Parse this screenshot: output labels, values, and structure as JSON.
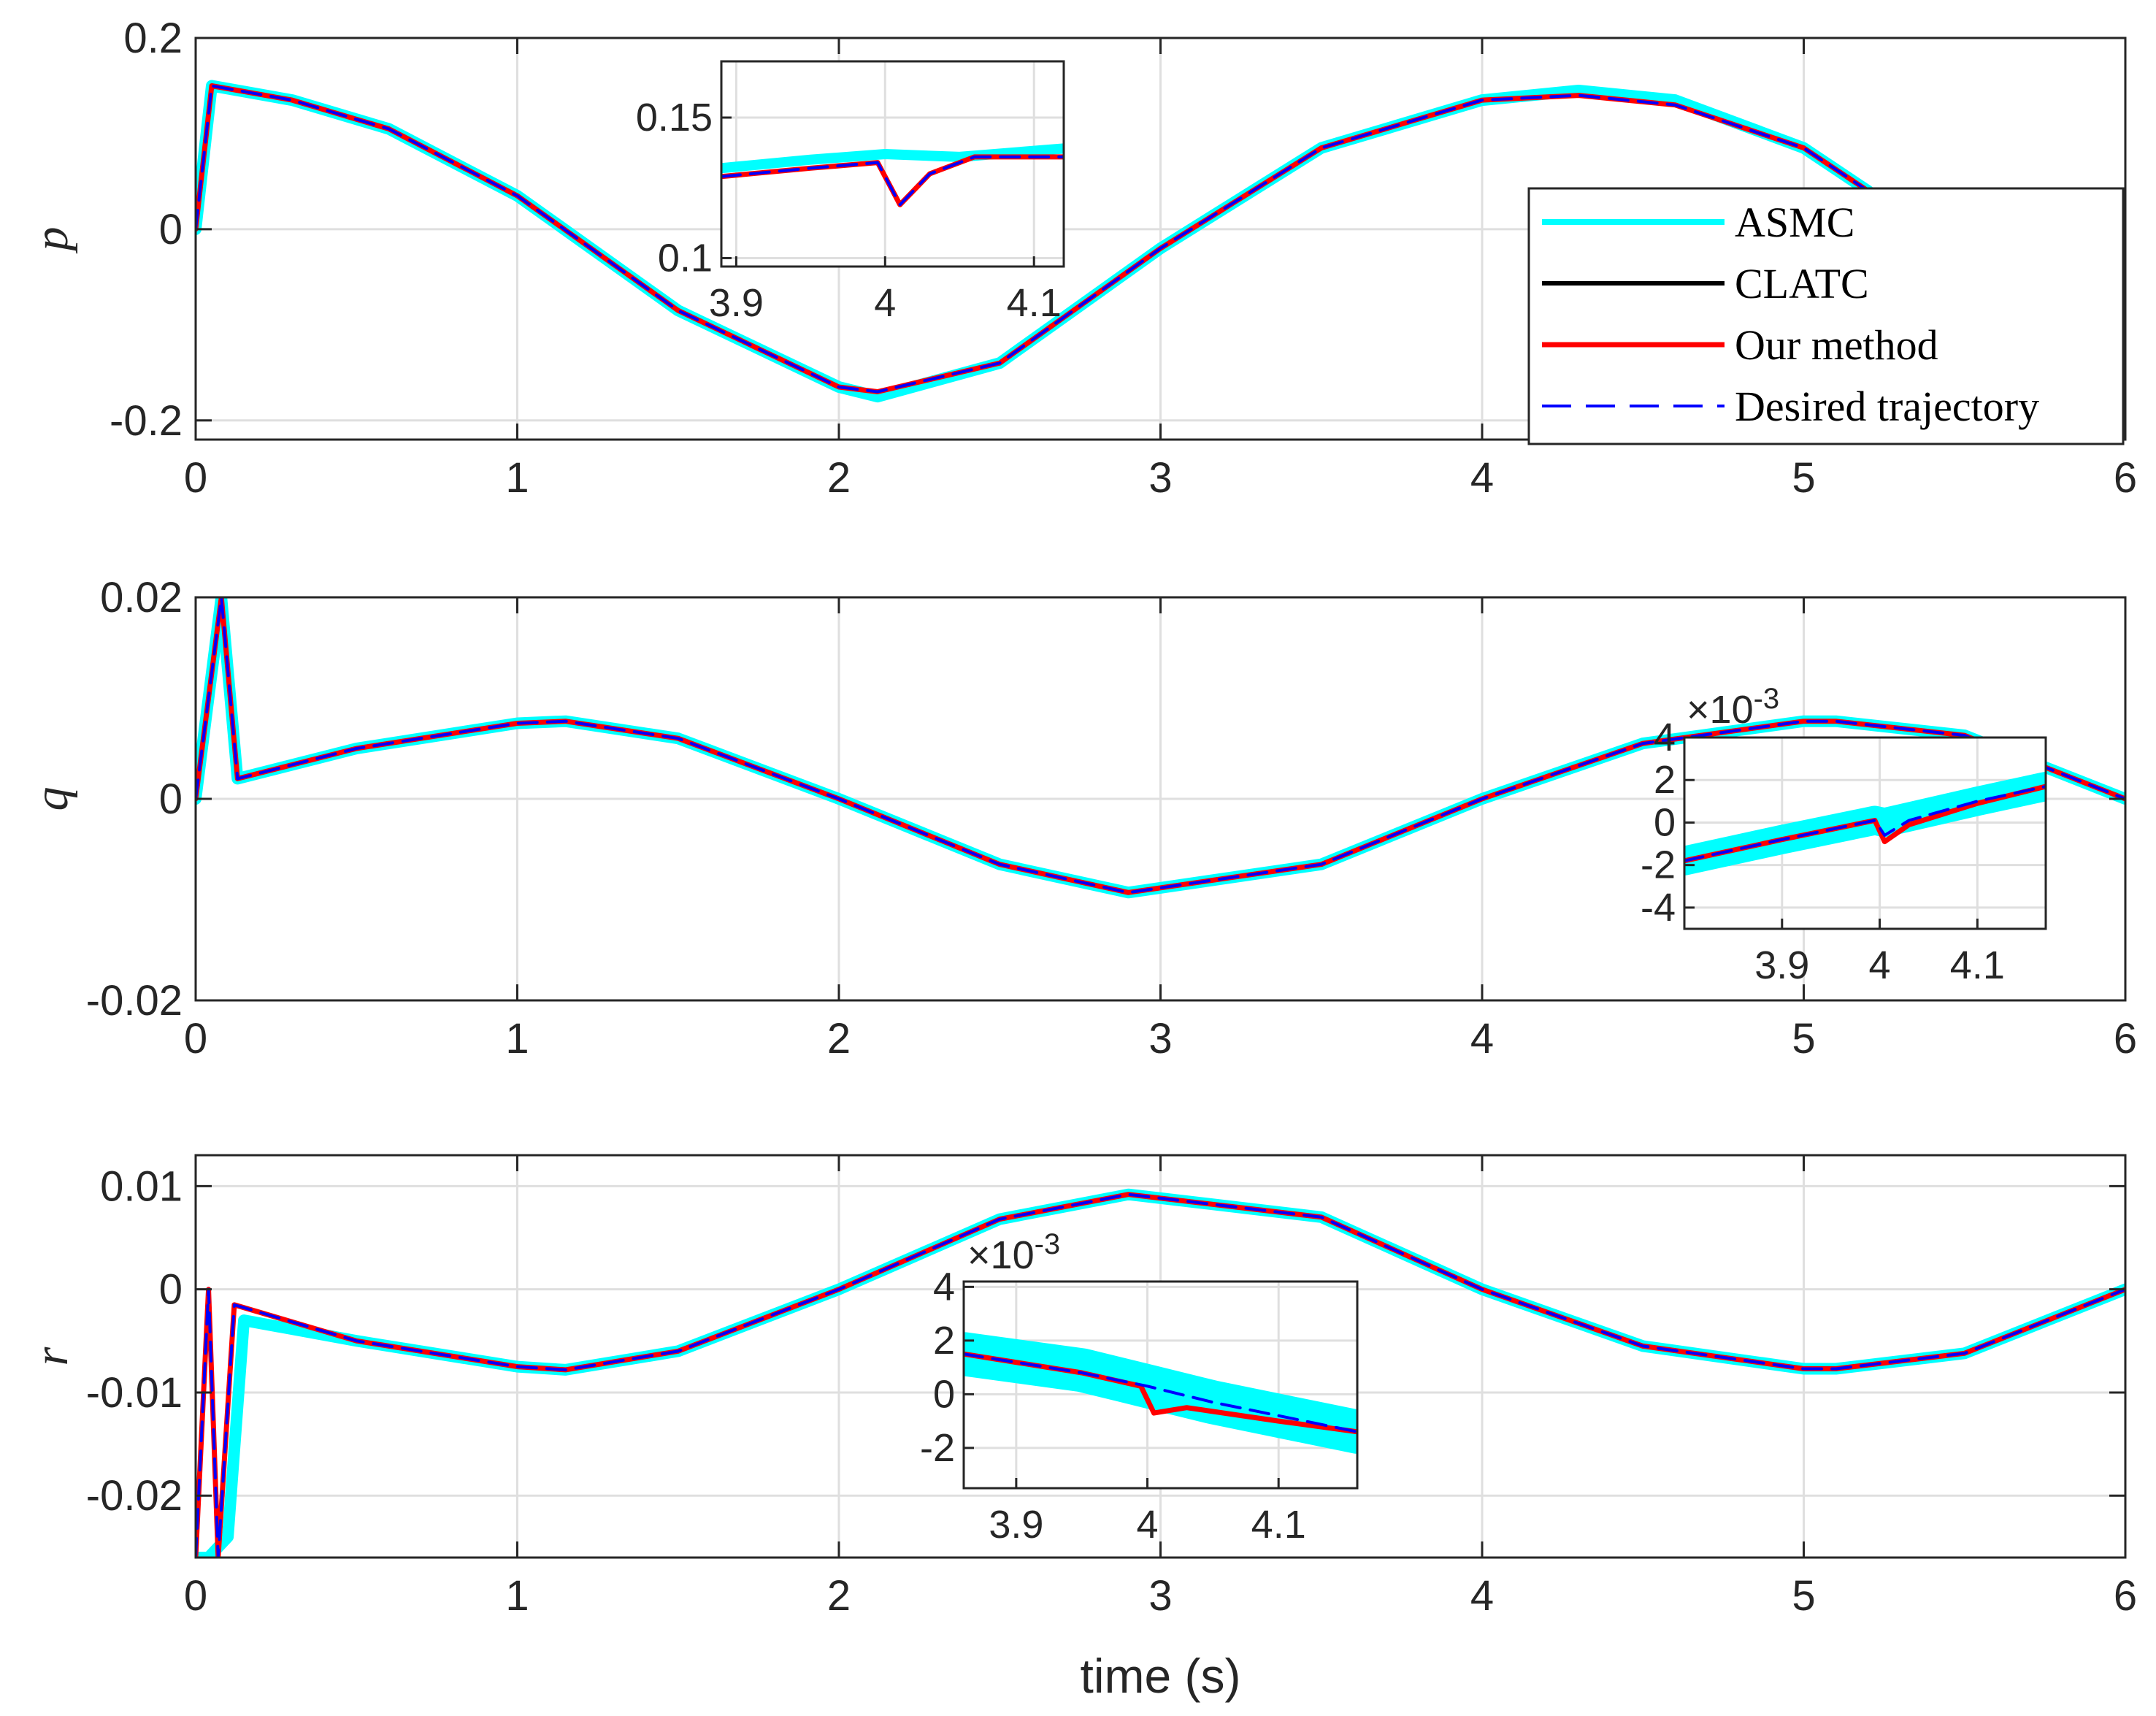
{
  "colors": {
    "asmc": "#00FFFF",
    "clatc": "#000000",
    "ours": "#FF0000",
    "desired": "#0000FF",
    "grid": "#DFDFDF",
    "axis": "#262626"
  },
  "chart_data": [
    {
      "type": "line",
      "ylabel": "p",
      "xlabel": "",
      "xlim": [
        0,
        6
      ],
      "ylim": [
        -0.22,
        0.2
      ],
      "xticks": [
        0,
        1,
        2,
        3,
        4,
        5,
        6
      ],
      "xtick_labels": [
        "0",
        "1",
        "2",
        "3",
        "4",
        "5",
        "6"
      ],
      "yticks": [
        -0.2,
        0,
        0.2
      ],
      "ytick_labels": [
        "-0.2",
        "0",
        "0.2"
      ],
      "grid": true,
      "legend": {
        "placement": "right",
        "entries": [
          "ASMC",
          "CLATC",
          "Our method",
          "Desired trajectory"
        ]
      },
      "series": [
        {
          "name": "ASMC",
          "x": [
            0,
            0.05,
            0.3,
            0.6,
            1.0,
            1.5,
            2.0,
            2.12,
            2.5,
            3.0,
            3.5,
            4.0,
            4.3,
            4.6,
            5.0,
            5.2
          ],
          "values": [
            0,
            0.15,
            0.135,
            0.105,
            0.035,
            -0.085,
            -0.165,
            -0.175,
            -0.14,
            -0.02,
            0.085,
            0.135,
            0.145,
            0.135,
            0.085,
            0.04
          ]
        },
        {
          "name": "CLATC",
          "x": [
            0,
            0.05,
            0.3,
            0.6,
            1.0,
            1.5,
            2.0,
            2.12,
            2.5,
            3.0,
            3.5,
            4.0,
            4.3,
            4.6,
            5.0,
            5.2
          ],
          "values": [
            0,
            0.15,
            0.135,
            0.105,
            0.035,
            -0.085,
            -0.165,
            -0.17,
            -0.14,
            -0.02,
            0.085,
            0.135,
            0.14,
            0.13,
            0.085,
            0.04
          ]
        },
        {
          "name": "Our method",
          "x": [
            0,
            0.05,
            0.3,
            0.6,
            1.0,
            1.5,
            2.0,
            2.12,
            2.5,
            3.0,
            3.5,
            4.0,
            4.3,
            4.6,
            5.0,
            5.2
          ],
          "values": [
            0,
            0.15,
            0.135,
            0.105,
            0.035,
            -0.085,
            -0.165,
            -0.17,
            -0.14,
            -0.02,
            0.085,
            0.135,
            0.14,
            0.13,
            0.085,
            0.04
          ]
        },
        {
          "name": "Desired trajectory",
          "x": [
            0,
            0.05,
            0.3,
            0.6,
            1.0,
            1.5,
            2.0,
            2.12,
            2.5,
            3.0,
            3.5,
            4.0,
            4.3,
            4.6,
            5.0,
            5.2
          ],
          "values": [
            0,
            0.15,
            0.135,
            0.105,
            0.035,
            -0.085,
            -0.165,
            -0.17,
            -0.14,
            -0.02,
            0.085,
            0.135,
            0.14,
            0.13,
            0.085,
            0.04
          ]
        }
      ],
      "inset": {
        "xlim": [
          3.89,
          4.12
        ],
        "ylim": [
          0.097,
          0.17
        ],
        "xticks": [
          3.9,
          4,
          4.1
        ],
        "xtick_labels": [
          "3.9",
          "4",
          "4.1"
        ],
        "yticks": [
          0.1,
          0.15
        ],
        "ytick_labels": [
          "0.1",
          "0.15"
        ],
        "exponent_label": "",
        "series": [
          {
            "name": "ASMC",
            "x": [
              3.89,
              3.95,
              4.0,
              4.05,
              4.12
            ],
            "values": [
              0.132,
              0.135,
              0.137,
              0.136,
              0.139
            ]
          },
          {
            "name": "Our method",
            "x": [
              3.89,
              3.95,
              3.995,
              4.01,
              4.03,
              4.06,
              4.12
            ],
            "values": [
              0.129,
              0.132,
              0.134,
              0.119,
              0.13,
              0.136,
              0.136
            ]
          },
          {
            "name": "Desired trajectory",
            "x": [
              3.89,
              3.95,
              3.995,
              4.01,
              4.03,
              4.06,
              4.12
            ],
            "values": [
              0.129,
              0.132,
              0.134,
              0.119,
              0.13,
              0.136,
              0.136
            ]
          }
        ]
      }
    },
    {
      "type": "line",
      "ylabel": "q",
      "xlabel": "",
      "xlim": [
        0,
        6
      ],
      "ylim": [
        -0.02,
        0.02
      ],
      "xticks": [
        0,
        1,
        2,
        3,
        4,
        5,
        6
      ],
      "xtick_labels": [
        "0",
        "1",
        "2",
        "3",
        "4",
        "5",
        "6"
      ],
      "yticks": [
        -0.02,
        0,
        0.02
      ],
      "ytick_labels": [
        "-0.02",
        "0",
        "0.02"
      ],
      "grid": true,
      "series": [
        {
          "name": "ASMC",
          "x": [
            0,
            0.08,
            0.13,
            0.5,
            1.0,
            1.15,
            1.5,
            2.0,
            2.5,
            2.9,
            3.5,
            4.0,
            4.5,
            5.0,
            5.1,
            5.5,
            6.0
          ],
          "values": [
            0,
            0.02,
            0.002,
            0.005,
            0.0075,
            0.0077,
            0.006,
            0.0,
            -0.0065,
            -0.0093,
            -0.0065,
            0.0,
            0.0055,
            0.0077,
            0.0077,
            0.0063,
            0.0
          ]
        },
        {
          "name": "CLATC",
          "x": [
            0,
            0.08,
            0.13,
            0.5,
            1.0,
            1.15,
            1.5,
            2.0,
            2.5,
            2.9,
            3.5,
            4.0,
            4.5,
            5.0,
            5.1,
            5.5,
            6.0
          ],
          "values": [
            0,
            0.02,
            0.002,
            0.005,
            0.0075,
            0.0077,
            0.006,
            0.0,
            -0.0065,
            -0.0093,
            -0.0065,
            0.0,
            0.0055,
            0.0077,
            0.0077,
            0.0063,
            0.0
          ]
        },
        {
          "name": "Our method",
          "x": [
            0,
            0.08,
            0.13,
            0.5,
            1.0,
            1.15,
            1.5,
            2.0,
            2.5,
            2.9,
            3.5,
            4.0,
            4.5,
            5.0,
            5.1,
            5.5,
            6.0
          ],
          "values": [
            0,
            0.02,
            0.002,
            0.005,
            0.0075,
            0.0077,
            0.006,
            0.0,
            -0.0065,
            -0.0093,
            -0.0065,
            0.0,
            0.0055,
            0.0077,
            0.0077,
            0.0063,
            0.0
          ]
        },
        {
          "name": "Desired trajectory",
          "x": [
            0,
            0.08,
            0.13,
            0.5,
            1.0,
            1.15,
            1.5,
            2.0,
            2.5,
            2.9,
            3.5,
            4.0,
            4.5,
            5.0,
            5.1,
            5.5,
            6.0
          ],
          "values": [
            0,
            0.02,
            0.002,
            0.005,
            0.0075,
            0.0077,
            0.006,
            0.0,
            -0.0065,
            -0.0093,
            -0.0065,
            0.0,
            0.0055,
            0.0077,
            0.0077,
            0.0063,
            0.0
          ]
        }
      ],
      "inset": {
        "xlim": [
          3.8,
          4.17
        ],
        "ylim": [
          -5,
          4
        ],
        "xticks": [
          3.9,
          4,
          4.1
        ],
        "xtick_labels": [
          "3.9",
          "4",
          "4.1"
        ],
        "yticks": [
          -4,
          -2,
          0,
          2,
          4
        ],
        "ytick_labels": [
          "-4",
          "-2",
          "0",
          "2",
          "4"
        ],
        "exponent_label": "×10^-3",
        "series": [
          {
            "name": "ASMC",
            "x": [
              3.8,
              3.9,
              3.995,
              4.005,
              4.1,
              4.17
            ],
            "values": [
              -1.8,
              -0.8,
              0.1,
              0.0,
              1.0,
              1.7
            ]
          },
          {
            "name": "Our method",
            "x": [
              3.8,
              3.9,
              3.995,
              4.005,
              4.03,
              4.1,
              4.17
            ],
            "values": [
              -1.8,
              -0.8,
              0.1,
              -0.9,
              -0.1,
              0.9,
              1.7
            ]
          },
          {
            "name": "Desired trajectory",
            "x": [
              3.8,
              3.9,
              3.995,
              4.005,
              4.03,
              4.1,
              4.17
            ],
            "values": [
              -1.8,
              -0.8,
              0.1,
              -0.6,
              0.1,
              1.0,
              1.7
            ]
          }
        ]
      }
    },
    {
      "type": "line",
      "ylabel": "r",
      "xlabel": "time (s)",
      "xlim": [
        0,
        6
      ],
      "ylim": [
        -0.026,
        0.013
      ],
      "xticks": [
        0,
        1,
        2,
        3,
        4,
        5,
        6
      ],
      "xtick_labels": [
        "0",
        "1",
        "2",
        "3",
        "4",
        "5",
        "6"
      ],
      "yticks": [
        -0.02,
        -0.01,
        0,
        0.01
      ],
      "ytick_labels": [
        "-0.02",
        "-0.01",
        "0",
        "0.01"
      ],
      "grid": true,
      "series": [
        {
          "name": "ASMC",
          "x": [
            0,
            0.04,
            0.1,
            0.15,
            0.5,
            1.0,
            1.15,
            1.5,
            2.0,
            2.5,
            2.9,
            3.5,
            4.0,
            4.5,
            5.0,
            5.1,
            5.5,
            6.0
          ],
          "values": [
            -0.026,
            -0.026,
            -0.024,
            -0.003,
            -0.005,
            -0.0075,
            -0.0078,
            -0.006,
            0.0,
            0.0068,
            0.0092,
            0.007,
            0.0,
            -0.0055,
            -0.0077,
            -0.0077,
            -0.0062,
            0.0
          ]
        },
        {
          "name": "CLATC",
          "x": [
            0,
            0.04,
            0.07,
            0.12,
            0.5,
            1.0,
            1.15,
            1.5,
            2.0,
            2.5,
            2.9,
            3.5,
            4.0,
            4.5,
            5.0,
            5.1,
            5.5,
            6.0
          ],
          "values": [
            -0.026,
            0.0,
            -0.026,
            -0.0015,
            -0.005,
            -0.0075,
            -0.0078,
            -0.006,
            0.0,
            0.0068,
            0.0092,
            0.007,
            0.0,
            -0.0055,
            -0.0077,
            -0.0077,
            -0.0062,
            0.0
          ]
        },
        {
          "name": "Our method",
          "x": [
            0,
            0.04,
            0.07,
            0.12,
            0.5,
            1.0,
            1.15,
            1.5,
            2.0,
            2.5,
            2.9,
            3.5,
            4.0,
            4.5,
            5.0,
            5.1,
            5.5,
            6.0
          ],
          "values": [
            -0.026,
            0.0,
            -0.026,
            -0.0015,
            -0.005,
            -0.0075,
            -0.0078,
            -0.006,
            0.0,
            0.0068,
            0.0092,
            0.007,
            0.0,
            -0.0055,
            -0.0077,
            -0.0077,
            -0.0062,
            0.0
          ]
        },
        {
          "name": "Desired trajectory",
          "x": [
            0,
            0.04,
            0.07,
            0.12,
            0.5,
            1.0,
            1.15,
            1.5,
            2.0,
            2.5,
            2.9,
            3.5,
            4.0,
            4.5,
            5.0,
            5.1,
            5.5,
            6.0
          ],
          "values": [
            -0.026,
            0.0,
            -0.026,
            -0.0015,
            -0.005,
            -0.0075,
            -0.0078,
            -0.006,
            0.0,
            0.0068,
            0.0092,
            0.007,
            0.0,
            -0.0055,
            -0.0077,
            -0.0077,
            -0.0062,
            0.0
          ]
        }
      ],
      "inset": {
        "xlim": [
          3.86,
          4.16
        ],
        "ylim": [
          -3.5,
          4.2
        ],
        "xticks": [
          3.9,
          4,
          4.1
        ],
        "xtick_labels": [
          "3.9",
          "4",
          "4.1"
        ],
        "yticks": [
          -2,
          0,
          2,
          4
        ],
        "ytick_labels": [
          "-2",
          "0",
          "2",
          "4"
        ],
        "exponent_label": "×10^-3",
        "series": [
          {
            "name": "ASMC",
            "x": [
              3.86,
              3.95,
              4.0,
              4.05,
              4.16
            ],
            "values": [
              1.5,
              0.9,
              0.3,
              -0.3,
              -1.4
            ]
          },
          {
            "name": "Our method",
            "x": [
              3.86,
              3.95,
              3.995,
              4.005,
              4.03,
              4.1,
              4.16
            ],
            "values": [
              1.5,
              0.8,
              0.3,
              -0.7,
              -0.5,
              -1.0,
              -1.4
            ]
          },
          {
            "name": "Desired trajectory",
            "x": [
              3.86,
              3.95,
              4.0,
              4.05,
              4.16
            ],
            "values": [
              1.5,
              0.8,
              0.3,
              -0.3,
              -1.4
            ]
          }
        ]
      }
    }
  ]
}
